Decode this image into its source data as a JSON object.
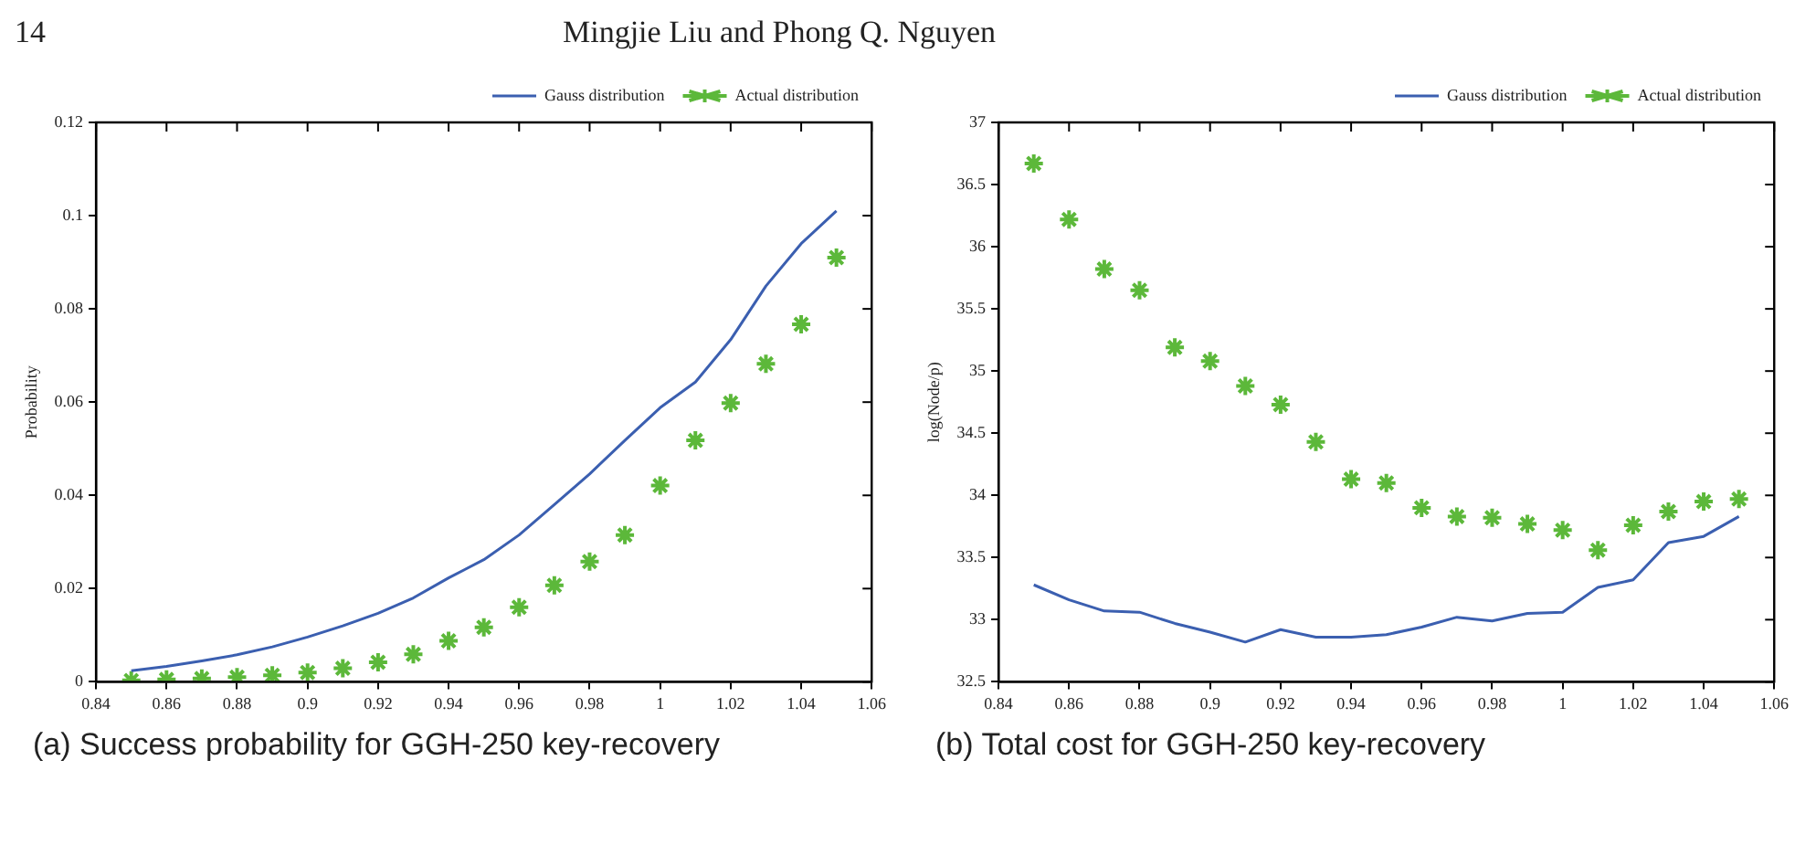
{
  "chart_data": [
    {
      "type": "line",
      "ylabel": "Probability",
      "annotations": [
        "14",
        "Mingjie Liu and Phong Q. Nguyen",
        "(a) Success probability for GGH-250 key-recovery"
      ],
      "x": [
        0.85,
        0.86,
        0.87,
        0.88,
        0.89,
        0.9,
        0.91,
        0.92,
        0.93,
        0.94,
        0.95,
        0.96,
        0.97,
        0.98,
        0.99,
        1.0,
        1.01,
        1.02,
        1.03,
        1.04,
        1.05
      ],
      "series": [
        {
          "name": "Gauss distribution",
          "type": "line",
          "color": "#3b5fb0",
          "marker": "none",
          "values": [
            0.0024,
            0.0033,
            0.0045,
            0.0058,
            0.0075,
            0.0096,
            0.012,
            0.0147,
            0.018,
            0.0223,
            0.0262,
            0.0315,
            0.038,
            0.0446,
            0.0518,
            0.0588,
            0.0643,
            0.0734,
            0.0849,
            0.094,
            0.101
          ]
        },
        {
          "name": "Actual distribution",
          "type": "scatter",
          "color": "#5cb83a",
          "marker": "cross",
          "values": [
            0.0003,
            0.0005,
            0.0007,
            0.001,
            0.0014,
            0.002,
            0.0029,
            0.0042,
            0.0059,
            0.0088,
            0.0117,
            0.016,
            0.0207,
            0.0258,
            0.0315,
            0.0421,
            0.0518,
            0.0598,
            0.0682,
            0.0767,
            0.091
          ]
        }
      ],
      "xlim": [
        0.84,
        1.06
      ],
      "xticks": [
        0.84,
        0.86,
        0.88,
        0.9,
        0.92,
        0.94,
        0.96,
        0.98,
        1,
        1.02,
        1.04,
        1.06
      ],
      "ylim": [
        0,
        0.12
      ],
      "yticks": [
        0,
        0.02,
        0.04,
        0.06,
        0.08,
        0.1,
        0.12
      ],
      "grid": false,
      "legend": "top right"
    },
    {
      "type": "line",
      "ylabel": "log(Node/p)",
      "annotations": [
        "(b) Total cost for GGH-250 key-recovery"
      ],
      "x": [
        0.85,
        0.86,
        0.87,
        0.88,
        0.89,
        0.9,
        0.91,
        0.92,
        0.93,
        0.94,
        0.95,
        0.96,
        0.97,
        0.98,
        0.99,
        1.0,
        1.01,
        1.02,
        1.03,
        1.04,
        1.05
      ],
      "series": [
        {
          "name": "Gauss distribution",
          "type": "line",
          "color": "#3b5fb0",
          "marker": "none",
          "values": [
            33.28,
            33.16,
            33.07,
            33.06,
            32.97,
            32.9,
            32.82,
            32.92,
            32.86,
            32.86,
            32.88,
            32.94,
            33.02,
            32.99,
            33.05,
            33.06,
            33.26,
            33.32,
            33.62,
            33.67,
            33.83
          ]
        },
        {
          "name": "Actual distribution",
          "type": "scatter",
          "color": "#5cb83a",
          "marker": "cross",
          "values": [
            36.67,
            36.22,
            35.82,
            35.65,
            35.19,
            35.08,
            34.88,
            34.73,
            34.43,
            34.13,
            34.1,
            33.9,
            33.83,
            33.82,
            33.77,
            33.72,
            33.56,
            33.76,
            33.87,
            33.95,
            33.97
          ]
        }
      ],
      "xlim": [
        0.84,
        1.06
      ],
      "xticks": [
        0.84,
        0.86,
        0.88,
        0.9,
        0.92,
        0.94,
        0.96,
        0.98,
        1,
        1.02,
        1.04,
        1.06
      ],
      "ylim": [
        32.5,
        37
      ],
      "yticks": [
        32.5,
        33,
        33.5,
        34,
        34.5,
        35,
        35.5,
        36,
        36.5,
        37
      ],
      "grid": false,
      "legend": "top right"
    }
  ]
}
